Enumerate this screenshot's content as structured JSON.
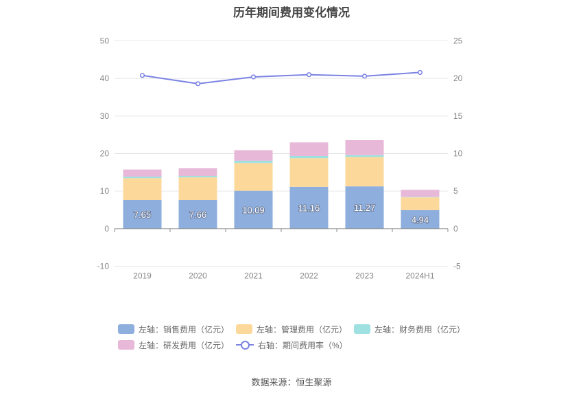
{
  "chart_data": {
    "type": "bar",
    "title": "历年期间费用变化情况",
    "categories": [
      "2019",
      "2020",
      "2021",
      "2022",
      "2023",
      "2024H1"
    ],
    "stacked": true,
    "left_axis": {
      "ylim": [
        -10,
        50
      ],
      "ticks": [
        "-10",
        "0",
        "10",
        "20",
        "30",
        "40",
        "50"
      ]
    },
    "right_axis": {
      "ylim": [
        -5,
        25
      ],
      "ticks": [
        "-5",
        "0",
        "5",
        "10",
        "15",
        "20",
        "25"
      ]
    },
    "grid": true,
    "series": [
      {
        "name": "左轴：销售费用（亿元）",
        "axis": "left",
        "type": "bar",
        "color": "#8eaedd",
        "values": [
          7.65,
          7.66,
          10.09,
          11.16,
          11.27,
          4.94
        ],
        "labels": [
          "7.65",
          "7.66",
          "10.09",
          "11.16",
          "11.27",
          "4.94"
        ]
      },
      {
        "name": "左轴：管理费用（亿元）",
        "axis": "left",
        "type": "bar",
        "color": "#fcd89b",
        "values": [
          5.8,
          6.0,
          7.4,
          7.6,
          7.8,
          3.4
        ]
      },
      {
        "name": "左轴：财务费用（亿元）",
        "axis": "left",
        "type": "bar",
        "color": "#9fe0e0",
        "values": [
          0.4,
          0.4,
          0.6,
          0.6,
          0.5,
          0.1
        ]
      },
      {
        "name": "左轴：研发费用（亿元）",
        "axis": "left",
        "type": "bar",
        "color": "#e8b8d8",
        "values": [
          1.9,
          2.0,
          2.8,
          3.6,
          4.0,
          1.9
        ]
      },
      {
        "name": "右轴：期间费用率（%）",
        "axis": "right",
        "type": "line",
        "color": "#7b83e3",
        "values": [
          20.4,
          19.3,
          20.2,
          20.5,
          20.3,
          20.8
        ]
      }
    ],
    "legend_position": "bottom"
  },
  "footer": {
    "source": "数据来源：恒生聚源"
  }
}
